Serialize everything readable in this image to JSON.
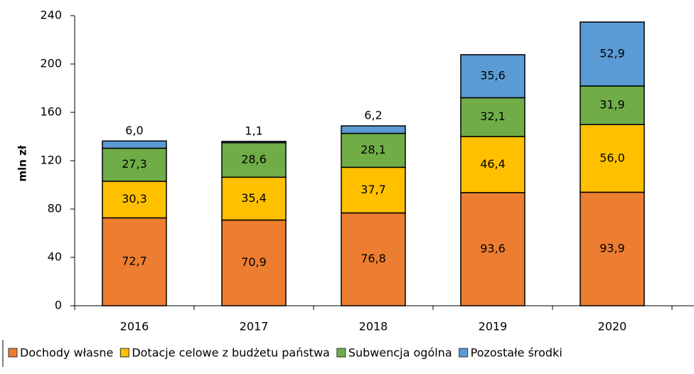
{
  "chart_data": {
    "type": "stacked_bar",
    "y_label": "mln zł",
    "categories": [
      "2016",
      "2017",
      "2018",
      "2019",
      "2020"
    ],
    "series": [
      {
        "name": "Dochody własne",
        "color": "#ed7d31",
        "values": [
          72.7,
          70.9,
          76.8,
          93.6,
          93.9
        ],
        "value_labels": [
          "72,7",
          "70,9",
          "76,8",
          "93,6",
          "93,9"
        ]
      },
      {
        "name": "Dotacje celowe z budżetu państwa",
        "color": "#ffc000",
        "values": [
          30.3,
          35.4,
          37.7,
          46.4,
          56.0
        ],
        "value_labels": [
          "30,3",
          "35,4",
          "37,7",
          "46,4",
          "56,0"
        ]
      },
      {
        "name": "Subwencja ogólna",
        "color": "#70ad47",
        "values": [
          27.3,
          28.6,
          28.1,
          32.1,
          31.9
        ],
        "value_labels": [
          "27,3",
          "28,6",
          "28,1",
          "32,1",
          "31,9"
        ]
      },
      {
        "name": "Pozostałe środki",
        "color": "#5b9bd5",
        "values": [
          6.0,
          1.1,
          6.2,
          35.6,
          52.9
        ],
        "value_labels": [
          "6,0",
          "1,1",
          "6,2",
          "35,6",
          "52,9"
        ]
      }
    ],
    "ylim": [
      0,
      240
    ],
    "yticks": [
      0,
      40,
      80,
      120,
      160,
      200,
      240
    ]
  }
}
